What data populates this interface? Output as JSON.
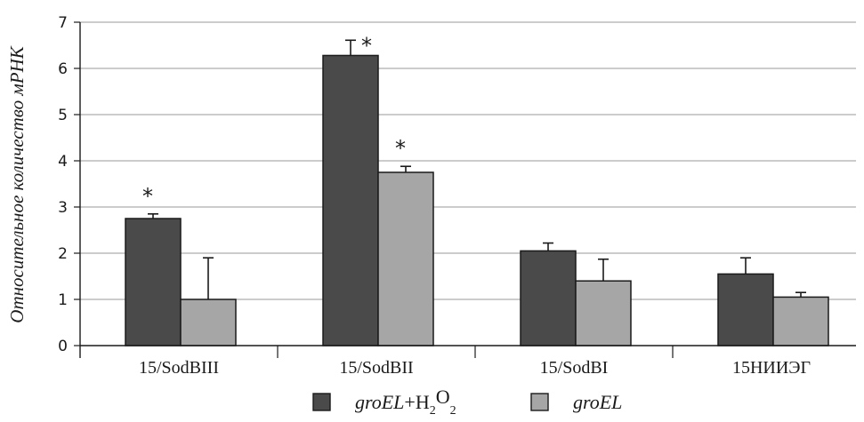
{
  "chart_data": {
    "type": "bar",
    "ylabel": "Относительное количество мРНК",
    "xlabel": "",
    "ylim": [
      0,
      7
    ],
    "yticks": [
      0,
      1,
      2,
      3,
      4,
      5,
      6,
      7
    ],
    "grid": true,
    "legend": "bottom",
    "categories": [
      "15/SodBIII",
      "15/SodBII",
      "15/SodBI",
      "15НИИЭГ"
    ],
    "series": [
      {
        "name": "groEL+H2O2",
        "legend": {
          "italic": "groEL",
          "plain": "+H",
          "sub1": "2",
          "mid": "O",
          "sub2": "2"
        },
        "color": "#4a4a4a",
        "values": [
          2.75,
          6.28,
          2.05,
          1.55
        ],
        "errors": [
          0.1,
          0.33,
          0.17,
          0.35
        ],
        "significance": [
          "*",
          "*",
          "",
          ""
        ]
      },
      {
        "name": "groEL",
        "legend": {
          "italic": "groEL"
        },
        "color": "#a6a6a6",
        "values": [
          1.0,
          3.75,
          1.4,
          1.05
        ],
        "errors": [
          0.9,
          0.13,
          0.47,
          0.1
        ],
        "significance": [
          "",
          "*",
          "",
          ""
        ]
      }
    ]
  }
}
